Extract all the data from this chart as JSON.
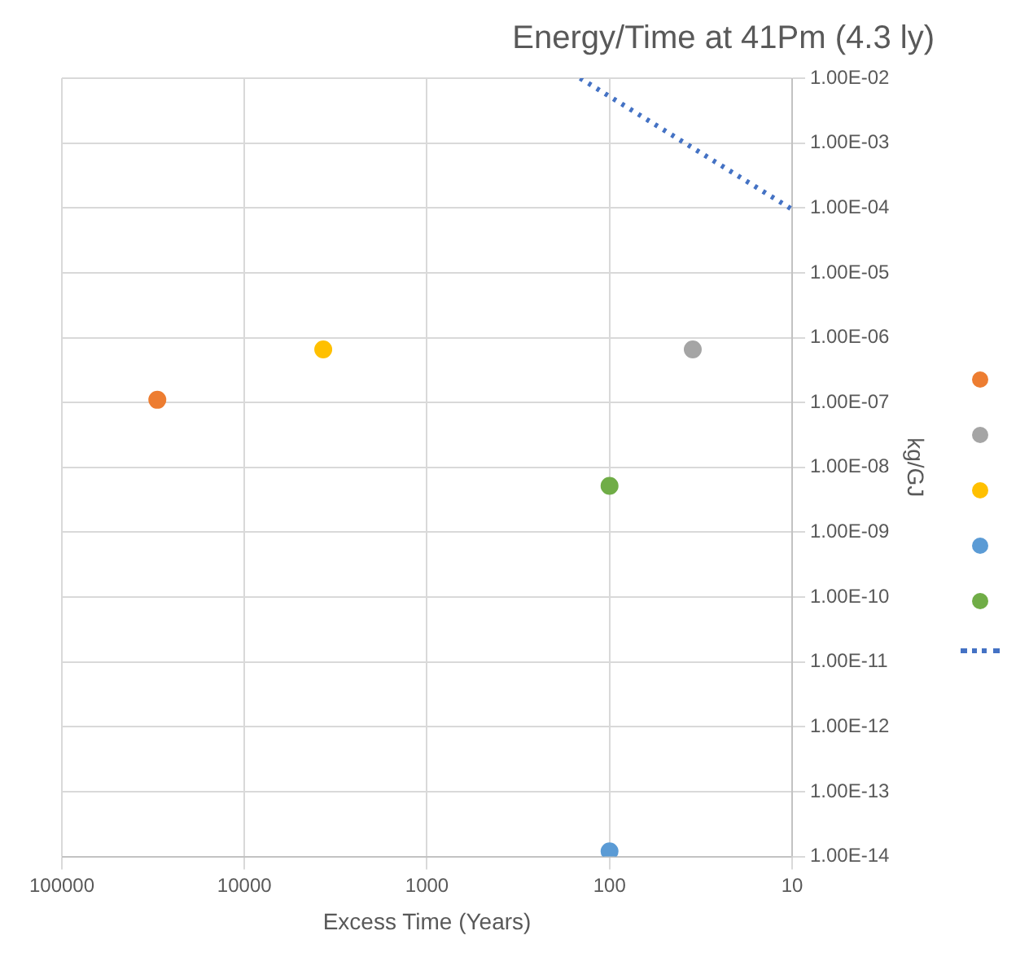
{
  "chart_data": {
    "type": "scatter",
    "title": "Energy/Time at 41Pm (4.3 ly)",
    "xlabel": "Excess Time (Years)",
    "ylabel": "kg/GJ",
    "log": "xy",
    "xlim": [
      100000,
      10
    ],
    "xticks": [
      100000,
      10000,
      1000,
      100,
      10
    ],
    "ylim": [
      1e-14,
      0.01
    ],
    "yticks": [
      {
        "value": 1e-14,
        "label": "1.00E-14"
      },
      {
        "value": 1e-13,
        "label": "1.00E-13"
      },
      {
        "value": 1e-12,
        "label": "1.00E-12"
      },
      {
        "value": 1e-11,
        "label": "1.00E-11"
      },
      {
        "value": 1e-10,
        "label": "1.00E-10"
      },
      {
        "value": 1e-09,
        "label": "1.00E-09"
      },
      {
        "value": 1e-08,
        "label": "1.00E-08"
      },
      {
        "value": 1e-07,
        "label": "1.00E-07"
      },
      {
        "value": 1e-06,
        "label": "1.00E-06"
      },
      {
        "value": 1e-05,
        "label": "1.00E-05"
      },
      {
        "value": 0.0001,
        "label": "1.00E-04"
      },
      {
        "value": 0.001,
        "label": "1.00E-03"
      },
      {
        "value": 0.01,
        "label": "1.00E-02"
      }
    ],
    "grid": true,
    "marker": "circle",
    "series": [
      {
        "color": "#ed7d31",
        "x": [
          30000
        ],
        "values": [
          1.1e-07
        ]
      },
      {
        "color": "#a5a5a5",
        "x": [
          35
        ],
        "values": [
          6.6e-07
        ]
      },
      {
        "color": "#ffc000",
        "x": [
          3700
        ],
        "values": [
          6.6e-07
        ]
      },
      {
        "color": "#5b9bd5",
        "x": [
          100
        ],
        "values": [
          1.2e-14
        ]
      },
      {
        "color": "#70ad47",
        "x": [
          100
        ],
        "values": [
          5.2e-09
        ]
      },
      {
        "type": "line",
        "marker": "none",
        "line_style": "dotted",
        "color": "#4472c4",
        "x": [
          145,
          10
        ],
        "values": [
          0.01,
          9.5e-05
        ]
      }
    ]
  }
}
